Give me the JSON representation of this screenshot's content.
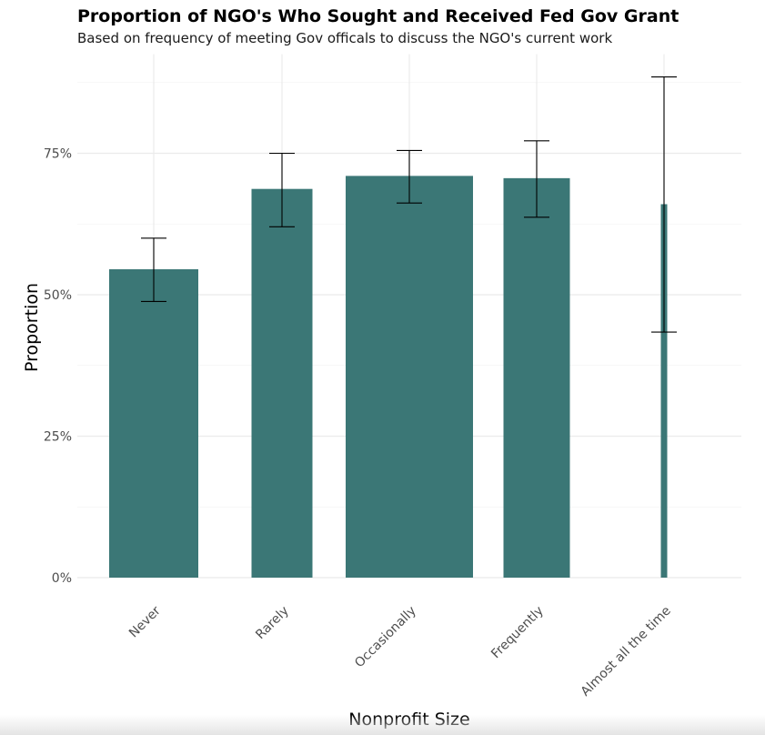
{
  "chart_data": {
    "type": "bar",
    "title": "Proportion of NGO's Who Sought and Received Fed Gov Grant",
    "subtitle": "Based on frequency of meeting Gov officals to discuss the NGO's current work",
    "xlabel": "Nonprofit Size",
    "ylabel": "Proportion",
    "categories": [
      "Never",
      "Rarely",
      "Occasionally",
      "Frequently",
      "Almost all the time"
    ],
    "values": [
      0.545,
      0.687,
      0.71,
      0.706,
      0.66
    ],
    "error_low": [
      0.488,
      0.62,
      0.662,
      0.637,
      0.434
    ],
    "error_high": [
      0.6,
      0.75,
      0.755,
      0.772,
      0.885
    ],
    "ylim": [
      0,
      0.925
    ],
    "yticks": [
      0,
      0.25,
      0.5,
      0.75
    ],
    "ytick_labels": [
      "0%",
      "25%",
      "50%",
      "75%"
    ],
    "grid": true,
    "bar_color": "#3b7776",
    "error_color": "#000000"
  }
}
